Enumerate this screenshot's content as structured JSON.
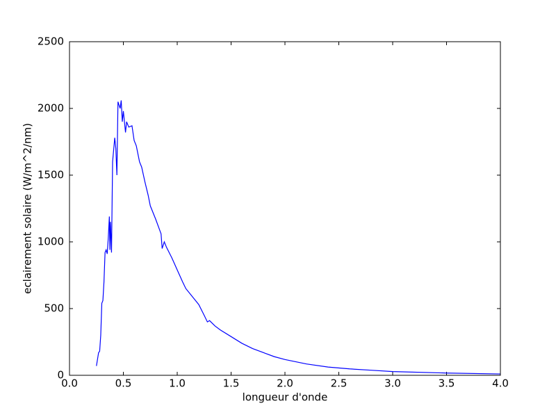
{
  "chart_data": {
    "type": "line",
    "xlabel": "longueur d'onde",
    "ylabel": "eclairement solaire (W/m^2/nm)",
    "x": [
      0.25,
      0.27,
      0.28,
      0.29,
      0.3,
      0.31,
      0.32,
      0.33,
      0.34,
      0.35,
      0.36,
      0.37,
      0.375,
      0.38,
      0.39,
      0.4,
      0.42,
      0.43,
      0.44,
      0.45,
      0.47,
      0.48,
      0.49,
      0.5,
      0.52,
      0.53,
      0.55,
      0.58,
      0.6,
      0.62,
      0.65,
      0.67,
      0.7,
      0.73,
      0.75,
      0.8,
      0.85,
      0.86,
      0.88,
      0.9,
      0.95,
      1.0,
      1.05,
      1.08,
      1.15,
      1.2,
      1.25,
      1.28,
      1.3,
      1.35,
      1.4,
      1.5,
      1.6,
      1.7,
      1.8,
      1.9,
      2.0,
      2.2,
      2.4,
      2.6,
      2.8,
      3.0,
      3.5,
      4.0
    ],
    "values": [
      70,
      170,
      180,
      300,
      540,
      560,
      700,
      920,
      940,
      910,
      1030,
      1190,
      940,
      1150,
      920,
      1600,
      1780,
      1700,
      1500,
      2050,
      2000,
      2060,
      1900,
      1980,
      1820,
      1900,
      1860,
      1870,
      1760,
      1720,
      1600,
      1560,
      1450,
      1350,
      1270,
      1170,
      1060,
      950,
      1000,
      960,
      880,
      790,
      700,
      650,
      580,
      530,
      450,
      400,
      410,
      370,
      340,
      290,
      240,
      200,
      170,
      140,
      118,
      85,
      62,
      48,
      38,
      28,
      17,
      10
    ],
    "color": "#0000ff",
    "xlim": [
      0,
      4
    ],
    "xticks": [
      {
        "value": 0,
        "label": "0.0"
      },
      0.5,
      {
        "value": 1,
        "label": "1.0"
      },
      1.5,
      {
        "value": 2,
        "label": "2.0"
      },
      2.5,
      {
        "value": 3,
        "label": "3.0"
      },
      3.5,
      {
        "value": 4,
        "label": "4.0"
      }
    ],
    "ylim": [
      0,
      2500
    ],
    "yticks": [
      0,
      500,
      1000,
      1500,
      2000,
      2500
    ]
  }
}
